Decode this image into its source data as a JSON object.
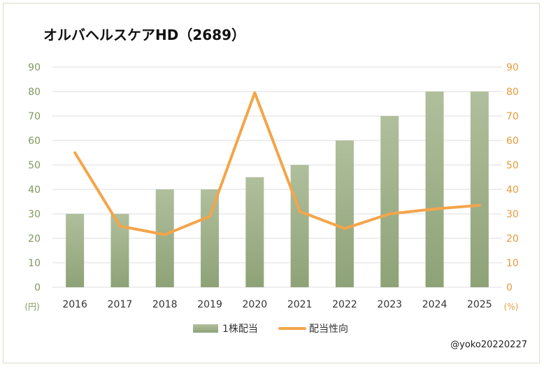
{
  "title": "オルバヘルスケアHD（2689）",
  "credit": "@yoko20220227",
  "chart_data": {
    "type": "bar+line",
    "categories": [
      "2016",
      "2017",
      "2018",
      "2019",
      "2020",
      "2021",
      "2022",
      "2023",
      "2024",
      "2025"
    ],
    "series": [
      {
        "name": "1株配当",
        "type": "bar",
        "axis": "left",
        "values": [
          30,
          30,
          40,
          40,
          45,
          50,
          60,
          70,
          80,
          80
        ]
      },
      {
        "name": "配当性向",
        "type": "line",
        "axis": "right",
        "values": [
          55,
          25,
          21.5,
          29,
          79.5,
          31,
          24,
          30,
          32,
          33.5
        ]
      }
    ],
    "left_axis": {
      "ticks": [
        "0",
        "10",
        "20",
        "30",
        "40",
        "50",
        "60",
        "70",
        "80",
        "90"
      ],
      "unit": "(円)",
      "ylim": [
        0,
        90
      ]
    },
    "right_axis": {
      "ticks": [
        "0",
        "10",
        "20",
        "30",
        "40",
        "50",
        "60",
        "70",
        "80",
        "90"
      ],
      "unit": "(%)",
      "ylim": [
        0,
        90
      ]
    },
    "grid": true,
    "legend_position": "bottom",
    "colors": {
      "bar_top": "#b0bf9c",
      "bar_bottom": "#8ea277",
      "line": "#f3a54a",
      "left_axis_text": "#7f9a5e",
      "right_axis_text": "#e49b3b",
      "grid": "#dcdcdc"
    }
  }
}
